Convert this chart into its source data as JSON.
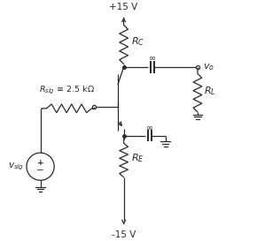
{
  "bg_color": "#ffffff",
  "line_color": "#2a2a2a",
  "figsize": [
    2.9,
    2.73
  ],
  "dpi": 100,
  "title_plus": "+15 V",
  "title_minus": "-15 V",
  "label_RC": "$R_C$",
  "label_RE": "$R_E$",
  "label_RL": "$R_L$",
  "label_Rsig": "$R_{sig}$",
  "label_Rsig_val": "≅ 2.5 kΩ",
  "label_vo": "$v_o$",
  "label_vsig": "$v_{sig}$",
  "label_inf": "∞"
}
